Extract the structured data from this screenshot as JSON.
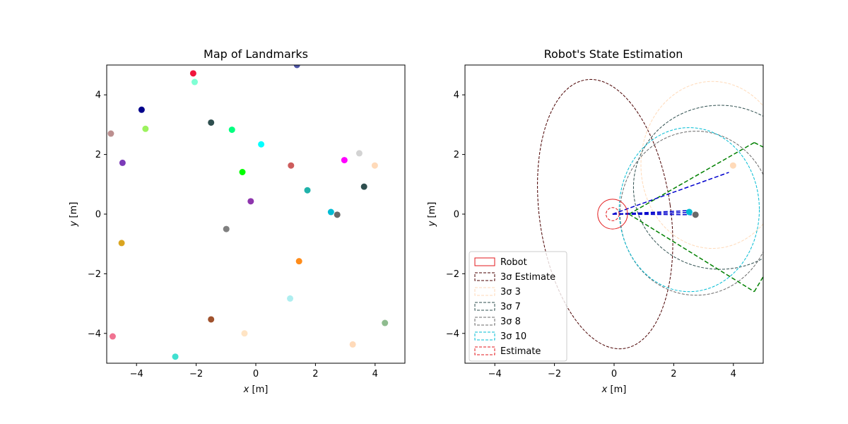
{
  "chart_data": [
    {
      "type": "scatter",
      "title": "Map of Landmarks",
      "xlabel_var": "x",
      "xlabel_unit": "[m]",
      "ylabel_var": "y",
      "ylabel_unit": "[m]",
      "xlim": [
        -5,
        5
      ],
      "ylim": [
        -5,
        5
      ],
      "xticks": [
        -4,
        -2,
        0,
        2,
        4
      ],
      "yticks": [
        -4,
        -2,
        0,
        2,
        4
      ],
      "grid": false,
      "points": [
        {
          "x": -2.1,
          "y": 4.72,
          "color": "#f0153c"
        },
        {
          "x": 1.38,
          "y": 5.0,
          "color": "#4d54a6"
        },
        {
          "x": -2.05,
          "y": 4.43,
          "color": "#7fffd4"
        },
        {
          "x": -3.83,
          "y": 3.5,
          "color": "#00008b"
        },
        {
          "x": -1.5,
          "y": 3.07,
          "color": "#2f4f4f"
        },
        {
          "x": -3.7,
          "y": 2.86,
          "color": "#9cf25e"
        },
        {
          "x": -0.8,
          "y": 2.83,
          "color": "#00ff7f"
        },
        {
          "x": -4.86,
          "y": 2.7,
          "color": "#bc8f8f"
        },
        {
          "x": 0.18,
          "y": 2.34,
          "color": "#00ffff"
        },
        {
          "x": 3.47,
          "y": 2.04,
          "color": "#d3d3d3"
        },
        {
          "x": 2.97,
          "y": 1.81,
          "color": "#ff00ff"
        },
        {
          "x": -4.47,
          "y": 1.72,
          "color": "#7b3ab8"
        },
        {
          "x": 3.99,
          "y": 1.63,
          "color": "#ffdab9"
        },
        {
          "x": 1.18,
          "y": 1.63,
          "color": "#cd5c5c"
        },
        {
          "x": -0.45,
          "y": 1.41,
          "color": "#00ff00"
        },
        {
          "x": 3.63,
          "y": 0.92,
          "color": "#2f4f4f"
        },
        {
          "x": 1.73,
          "y": 0.8,
          "color": "#20b2aa"
        },
        {
          "x": -0.17,
          "y": 0.43,
          "color": "#8e35ad"
        },
        {
          "x": 2.52,
          "y": 0.07,
          "color": "#00bcd4"
        },
        {
          "x": 2.73,
          "y": -0.02,
          "color": "#696969"
        },
        {
          "x": -0.99,
          "y": -0.5,
          "color": "#808080"
        },
        {
          "x": -4.5,
          "y": -0.97,
          "color": "#daa520"
        },
        {
          "x": 1.45,
          "y": -1.58,
          "color": "#ff8c1a"
        },
        {
          "x": 1.15,
          "y": -2.83,
          "color": "#aeeef0"
        },
        {
          "x": -1.5,
          "y": -3.53,
          "color": "#a0522d"
        },
        {
          "x": 4.33,
          "y": -3.65,
          "color": "#8fbc8f"
        },
        {
          "x": -0.38,
          "y": -4.0,
          "color": "#ffe4c4"
        },
        {
          "x": -4.8,
          "y": -4.1,
          "color": "#f07391"
        },
        {
          "x": 3.25,
          "y": -4.37,
          "color": "#ffdab9"
        },
        {
          "x": -2.7,
          "y": -4.78,
          "color": "#40e0d0"
        }
      ]
    },
    {
      "type": "scatter",
      "title": "Robot's State Estimation",
      "xlabel_var": "x",
      "xlabel_unit": "[m]",
      "ylabel_var": "y",
      "ylabel_unit": "[m]",
      "xlim": [
        -5,
        5
      ],
      "ylim": [
        -5,
        5
      ],
      "xticks": [
        -4,
        -2,
        0,
        2,
        4
      ],
      "yticks": [
        -4,
        -2,
        0,
        2,
        4
      ],
      "grid": false,
      "robot": {
        "x": -0.05,
        "y": 0.0,
        "radius": 0.5,
        "color": "#e31a1c"
      },
      "estimate": {
        "x": -0.05,
        "y": 0.0,
        "radius": 0.22,
        "color": "#e31a1c"
      },
      "ellipses": [
        {
          "label": "3σ Estimate",
          "cx": -0.3,
          "cy": 0.0,
          "rx": 2.2,
          "ry": 4.55,
          "angle": 8,
          "color": "#4a0000"
        },
        {
          "label": "3σ 3",
          "cx": 3.3,
          "cy": 1.65,
          "rx": 2.4,
          "ry": 2.8,
          "angle": 0,
          "color": "#ffdab9"
        },
        {
          "label": "3σ 7",
          "cx": 3.55,
          "cy": 0.9,
          "rx": 2.9,
          "ry": 2.75,
          "angle": 0,
          "color": "#2f4f4f"
        },
        {
          "label": "3σ 8",
          "cx": 2.75,
          "cy": 0.03,
          "rx": 2.55,
          "ry": 2.75,
          "angle": 0,
          "color": "#696969"
        },
        {
          "label": "3σ 10",
          "cx": 2.52,
          "cy": 0.15,
          "rx": 2.35,
          "ry": 2.75,
          "angle": 0,
          "color": "#00bcd4"
        }
      ],
      "fov_color": "#008000",
      "fov": [
        [
          [
            0.5,
            0.0
          ],
          [
            4.7,
            2.4
          ]
        ],
        [
          [
            0.5,
            0.0
          ],
          [
            4.7,
            -2.6
          ]
        ],
        [
          [
            4.7,
            2.4
          ],
          [
            5.0,
            2.25
          ]
        ],
        [
          [
            4.7,
            -2.6
          ],
          [
            5.0,
            -2.1
          ]
        ]
      ],
      "observation_color": "#0000cd",
      "observations": [
        {
          "from": [
            -0.05,
            0.0
          ],
          "to": [
            3.85,
            1.4
          ]
        },
        {
          "from": [
            -0.05,
            0.0
          ],
          "to": [
            2.55,
            0.12
          ]
        },
        {
          "from": [
            -0.05,
            0.0
          ],
          "to": [
            2.45,
            0.05
          ]
        },
        {
          "from": [
            -0.05,
            0.0
          ],
          "to": [
            2.6,
            -0.02
          ]
        }
      ],
      "landmarks": [
        {
          "x": 3.99,
          "y": 1.63,
          "color": "#ffdab9"
        },
        {
          "x": 2.52,
          "y": 0.07,
          "color": "#00bcd4"
        },
        {
          "x": 2.73,
          "y": -0.02,
          "color": "#696969"
        }
      ],
      "legend_position": "lower-left",
      "legend": [
        {
          "label": "Robot",
          "color": "#e31a1c",
          "style": "solid"
        },
        {
          "label": "3σ Estimate",
          "color": "#4a0000",
          "style": "dashed"
        },
        {
          "label": "3σ 3",
          "color": "#ffdab9",
          "style": "dashed"
        },
        {
          "label": "3σ 7",
          "color": "#2f4f4f",
          "style": "dashed"
        },
        {
          "label": "3σ 8",
          "color": "#696969",
          "style": "dashed"
        },
        {
          "label": "3σ 10",
          "color": "#00bcd4",
          "style": "dashed"
        },
        {
          "label": "Estimate",
          "color": "#e31a1c",
          "style": "dashed"
        }
      ]
    }
  ]
}
